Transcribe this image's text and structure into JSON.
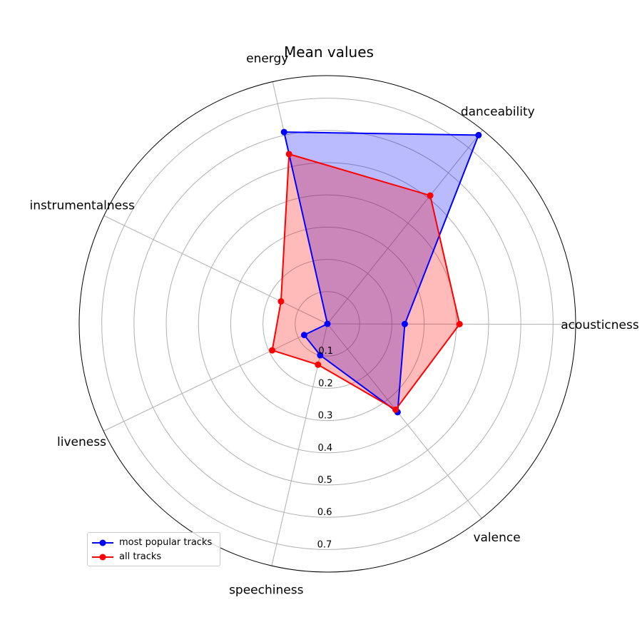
{
  "chart_data": {
    "type": "radar",
    "title": "Mean values",
    "axes": [
      "acousticness",
      "danceability",
      "energy",
      "instrumentalness",
      "liveness",
      "speechiness",
      "valence"
    ],
    "r_ticks": [
      0.1,
      0.2,
      0.3,
      0.4,
      0.5,
      0.6,
      0.7
    ],
    "r_max": 0.77,
    "grid": true,
    "legend_position": "lower-left",
    "series": [
      {
        "name": "most popular tracks",
        "color": "#0000ff",
        "fill": "#0000ff",
        "values": [
          0.24,
          0.75,
          0.61,
          0.0,
          0.08,
          0.1,
          0.35
        ]
      },
      {
        "name": "all tracks",
        "color": "#ff0000",
        "fill": "#ff0000",
        "values": [
          0.41,
          0.51,
          0.54,
          0.16,
          0.19,
          0.13,
          0.34
        ]
      }
    ]
  }
}
